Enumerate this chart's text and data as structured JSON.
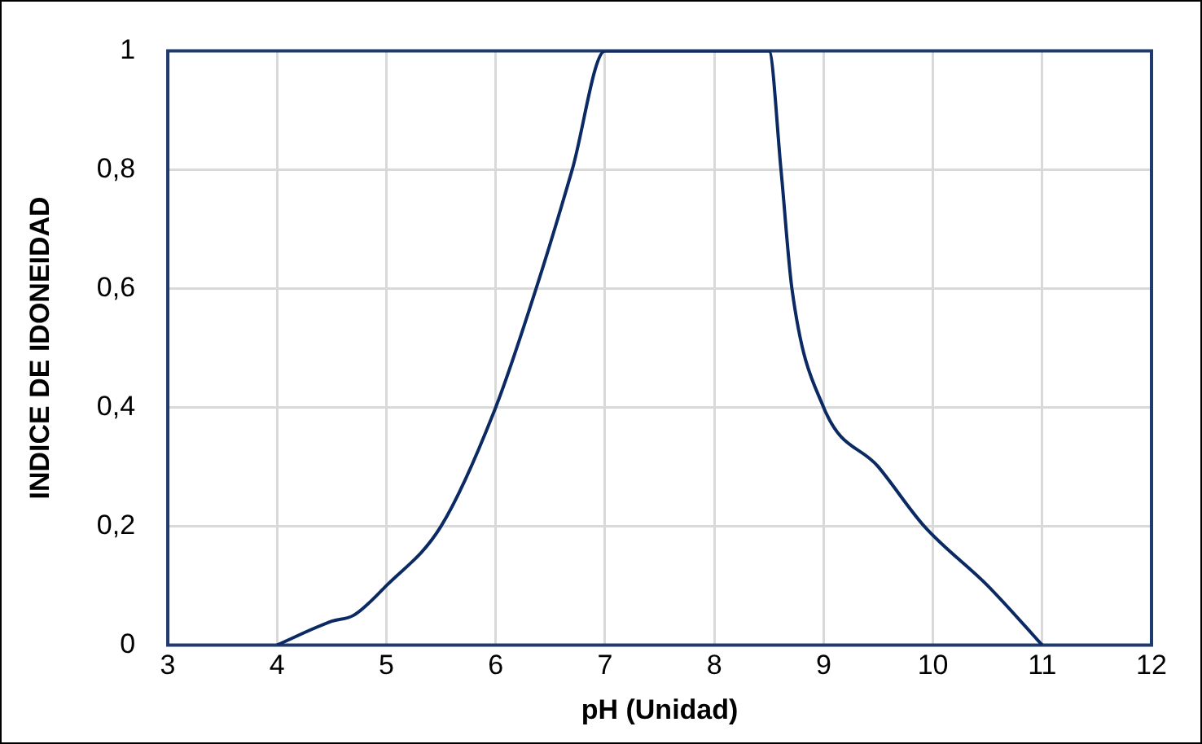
{
  "chart_data": {
    "type": "line",
    "xlabel": "pH (Unidad)",
    "ylabel": "INDICE DE IDONEIDAD",
    "x": [
      4,
      4.5,
      4.7,
      5,
      5.5,
      6,
      6.37,
      6.7,
      7,
      8.5,
      8.61,
      8.71,
      9,
      9.5,
      9.92,
      10.5,
      11
    ],
    "series": [
      {
        "color": "#0b2a63",
        "values": [
          0,
          0.04,
          0.05,
          0.1,
          0.2,
          0.4,
          0.6,
          0.8,
          1,
          1,
          0.8,
          0.6,
          0.4,
          0.3,
          0.2,
          0.1,
          0
        ]
      }
    ],
    "xlim": [
      3,
      12
    ],
    "xticks": [
      3,
      4,
      5,
      6,
      7,
      8,
      9,
      10,
      11,
      12
    ],
    "ylim": [
      0,
      1
    ],
    "yticks": [
      0,
      {
        "value": 0.2,
        "label": "0,2"
      },
      {
        "value": 0.4,
        "label": "0,4"
      },
      {
        "value": 0.6,
        "label": "0,6"
      },
      {
        "value": 0.8,
        "label": "0,8"
      },
      1
    ],
    "grid": true,
    "legend": false,
    "marker": "none",
    "line_style": "solid"
  }
}
